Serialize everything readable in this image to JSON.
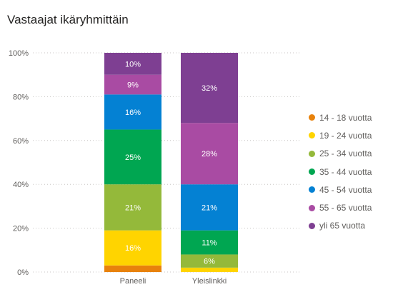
{
  "chart_data": {
    "type": "bar",
    "title": "Vastaajat ikäryhmittäin",
    "stacked": true,
    "percent": true,
    "categories": [
      "Paneeli",
      "Yleislinkki"
    ],
    "y_ticks": [
      "0%",
      "20%",
      "40%",
      "60%",
      "80%",
      "100%"
    ],
    "ylim": [
      0,
      100
    ],
    "grid": true,
    "legend_position": "right",
    "series": [
      {
        "name": "14 - 18 vuotta",
        "color": "#E8820C",
        "values": [
          3,
          0
        ],
        "labels": [
          "",
          ""
        ]
      },
      {
        "name": "19 - 24 vuotta",
        "color": "#FFD400",
        "values": [
          16,
          2
        ],
        "labels": [
          "16%",
          ""
        ]
      },
      {
        "name": "25 - 34 vuotta",
        "color": "#94B93A",
        "values": [
          21,
          6
        ],
        "labels": [
          "21%",
          "6%"
        ]
      },
      {
        "name": "35 - 44 vuotta",
        "color": "#00A651",
        "values": [
          25,
          11
        ],
        "labels": [
          "25%",
          "11%"
        ]
      },
      {
        "name": "45 - 54 vuotta",
        "color": "#0481D3",
        "values": [
          16,
          21
        ],
        "labels": [
          "16%",
          "21%"
        ]
      },
      {
        "name": "55 - 65 vuotta",
        "color": "#A94BA3",
        "values": [
          9,
          28
        ],
        "labels": [
          "9%",
          "28%"
        ]
      },
      {
        "name": "yli 65 vuotta",
        "color": "#7E3F92",
        "values": [
          10,
          32
        ],
        "labels": [
          "10%",
          "32%"
        ]
      }
    ]
  }
}
